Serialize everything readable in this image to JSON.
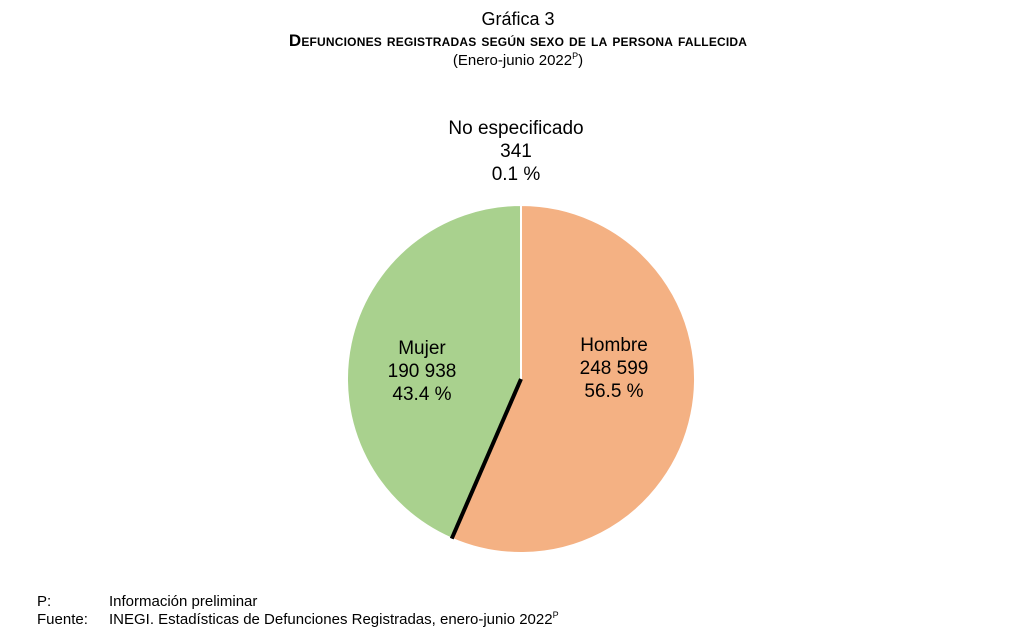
{
  "header": {
    "label": "Gráfica 3",
    "title": "Defunciones registradas según sexo de la persona fallecida",
    "subtitle": "(Enero-junio 2022",
    "subtitle_sup": "P",
    "subtitle_close": ")"
  },
  "chart_data": {
    "type": "pie",
    "start_angle_deg": 0,
    "direction": "clockwise",
    "slices": [
      {
        "label": "Hombre",
        "value": 248599,
        "value_text": "248 599",
        "percent": 56.5,
        "percent_text": "56.5 %",
        "color": "#F4B183"
      },
      {
        "label": "No especificado",
        "value": 341,
        "value_text": "341",
        "percent": 0.1,
        "percent_text": "0.1 %",
        "color": "#000000"
      },
      {
        "label": "Mujer",
        "value": 190938,
        "value_text": "190 938",
        "percent": 43.4,
        "percent_text": "43.4 %",
        "color": "#A9D18E"
      }
    ]
  },
  "notes": {
    "p_key": "P:",
    "p_text": "Información preliminar",
    "source_key": "Fuente:",
    "source_text": "INEGI. Estadísticas de Defunciones Registradas, enero-junio 2022",
    "source_sup": "P"
  }
}
